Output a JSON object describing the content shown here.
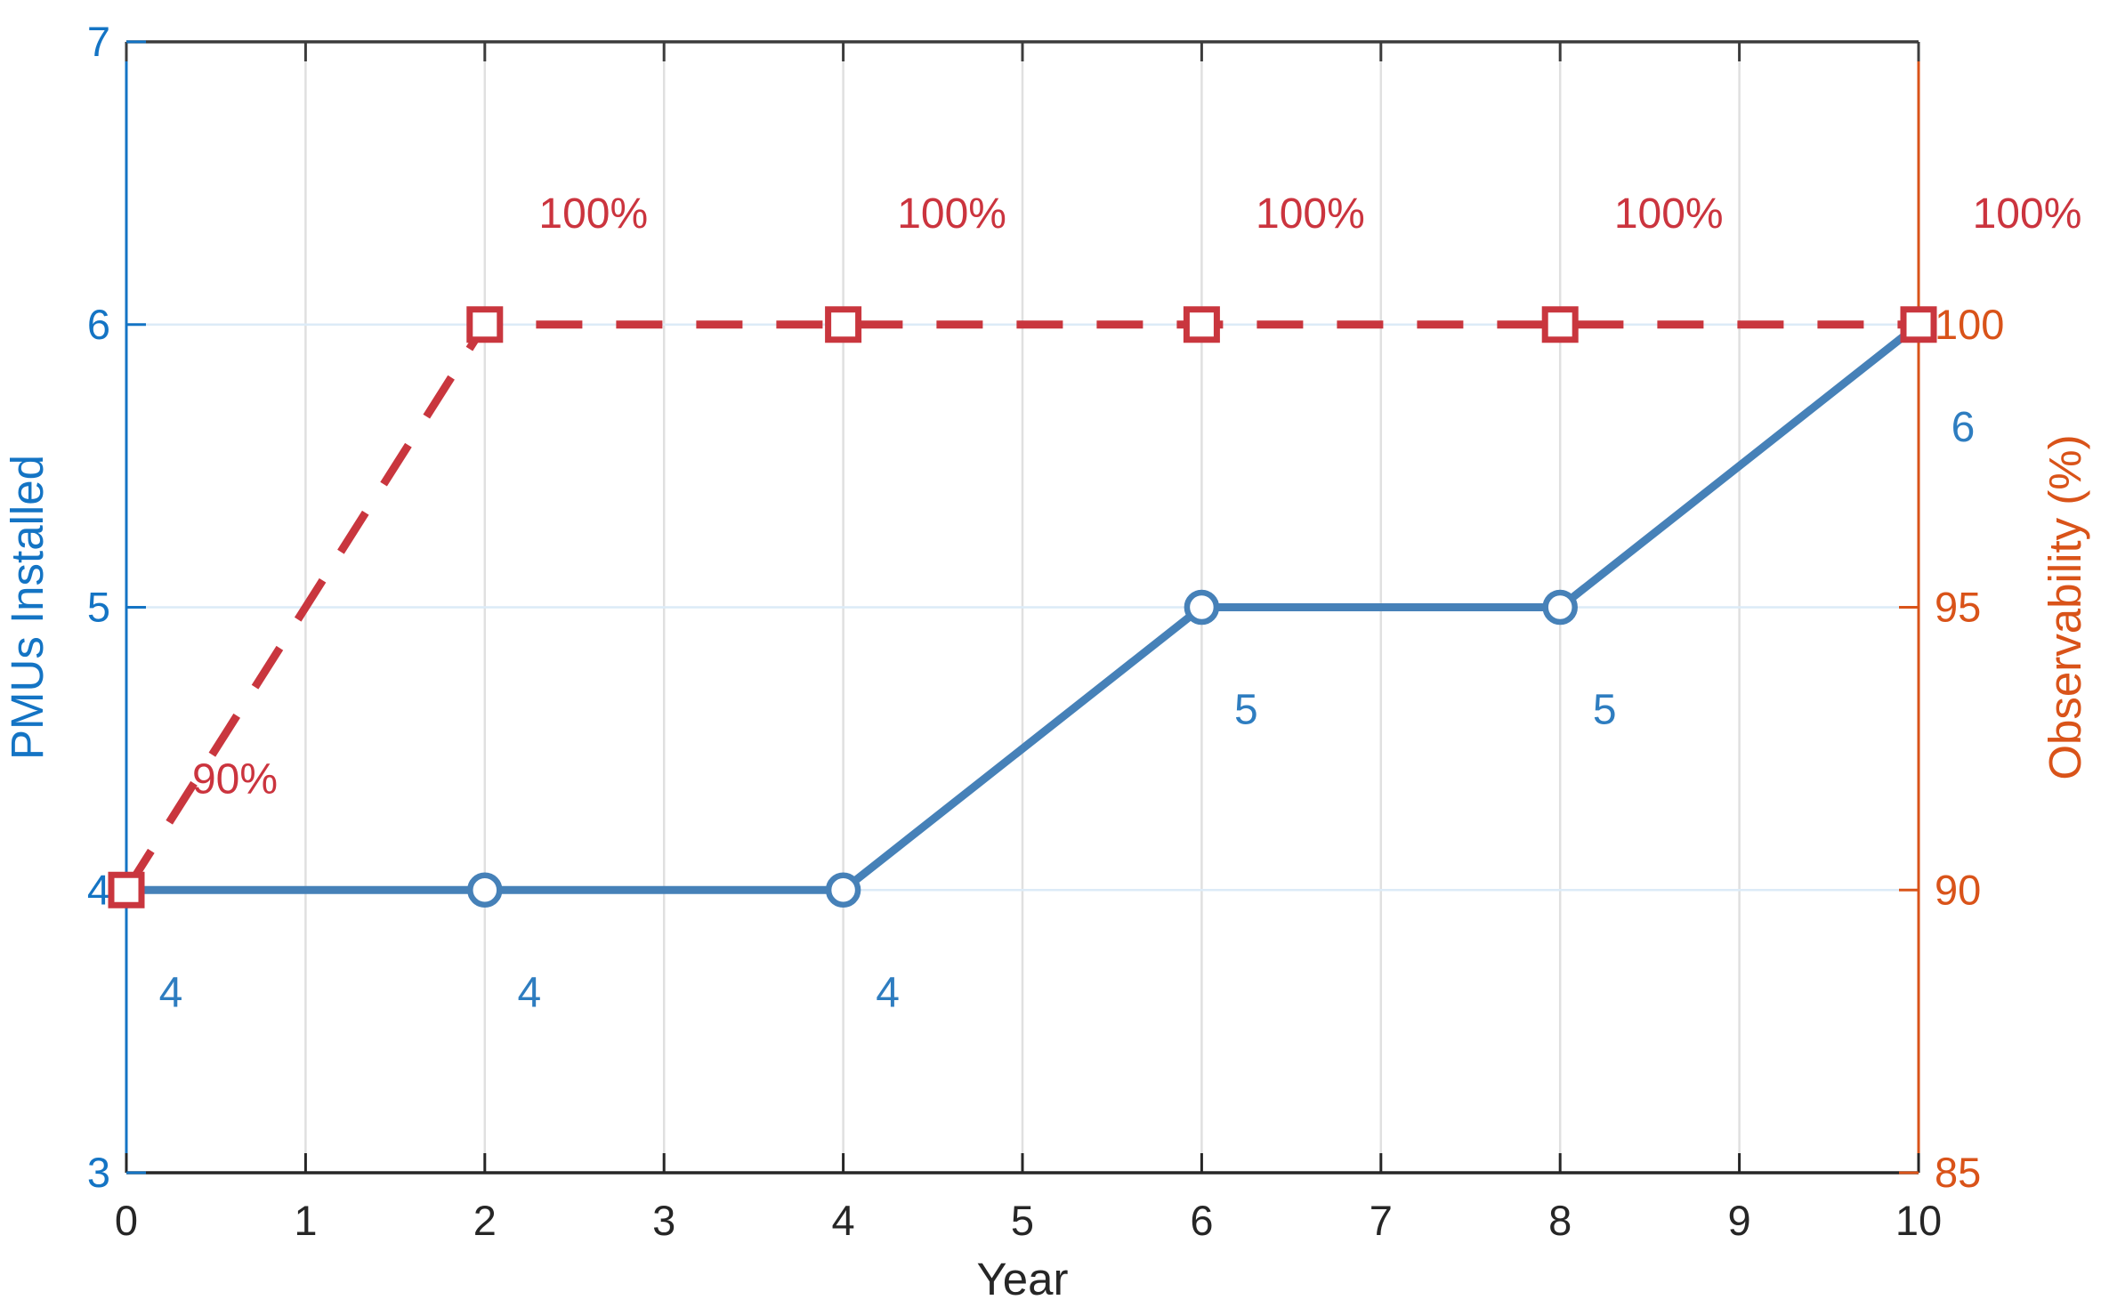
{
  "chart_data": {
    "type": "line",
    "title": "",
    "xlabel": "Year",
    "xlim": [
      0,
      10
    ],
    "x_ticks": [
      0,
      1,
      2,
      3,
      4,
      5,
      6,
      7,
      8,
      9,
      10
    ],
    "x": [
      0,
      2,
      4,
      6,
      8,
      10
    ],
    "grid": true,
    "legend": "none",
    "left_axis": {
      "label": "PMUs Installed",
      "color": "#1474c4",
      "ylim": [
        3,
        7
      ],
      "ticks": [
        3,
        4,
        5,
        6,
        7
      ]
    },
    "right_axis": {
      "label": "Observability (%)",
      "color": "#d95319",
      "ylim": [
        85,
        105
      ],
      "ticks": [
        85,
        90,
        95,
        100
      ]
    },
    "series": [
      {
        "name": "PMUs Installed",
        "axis": "left",
        "values": [
          4,
          4,
          4,
          5,
          5,
          6
        ],
        "labels": [
          "4",
          "4",
          "4",
          "5",
          "5",
          "6"
        ],
        "color": "#4681b8",
        "label_color": "#2e7dc0",
        "line_style": "solid",
        "marker": "circle",
        "label_offset": {
          "dx": 50,
          "dy": 115
        }
      },
      {
        "name": "Observability",
        "axis": "right",
        "values": [
          90,
          100,
          100,
          100,
          100,
          100
        ],
        "labels": [
          "90%",
          "100%",
          "100%",
          "100%",
          "100%",
          "100%"
        ],
        "color": "#c9363e",
        "label_color": "#cb343e",
        "line_style": "dashed",
        "marker": "square",
        "label_offset": {
          "dx": 122,
          "dy": -125
        }
      }
    ],
    "colors": {
      "x_axis": "#262626",
      "top_spine": "#3c3c3c",
      "grid_vertical": "#e0e0e0",
      "grid_horizontal": "#dcebf7",
      "background": "#ffffff"
    }
  }
}
